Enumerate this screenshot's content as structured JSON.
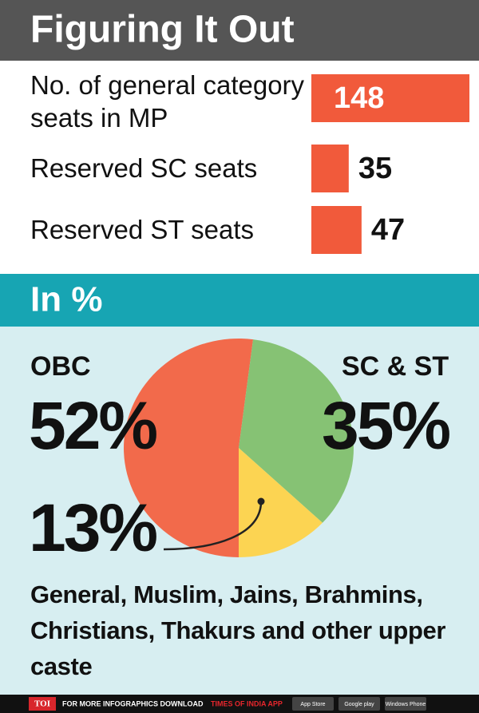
{
  "chart_data": [
    {
      "type": "bar",
      "title": "Figuring It Out",
      "categories": [
        "No. of general category seats in MP",
        "Reserved SC seats",
        "Reserved ST seats"
      ],
      "values": [
        148,
        35,
        47
      ],
      "color": "#f15a3b"
    },
    {
      "type": "pie",
      "title": "In %",
      "categories": [
        "OBC",
        "SC & ST",
        "General, Muslim, Jains, Brahmins, Christians, Thakurs and other upper caste"
      ],
      "values": [
        52,
        35,
        13
      ],
      "value_labels": [
        "52%",
        "35%",
        "13%"
      ],
      "colors": [
        "#f26a4b",
        "#86c274",
        "#fcd452"
      ]
    }
  ],
  "footer": {
    "logo": "TOI",
    "text": "FOR MORE INFOGRAPHICS DOWNLOAD",
    "app": "TIMES OF INDIA APP",
    "stores": [
      "App Store",
      "Google play",
      "Windows Phone"
    ]
  }
}
